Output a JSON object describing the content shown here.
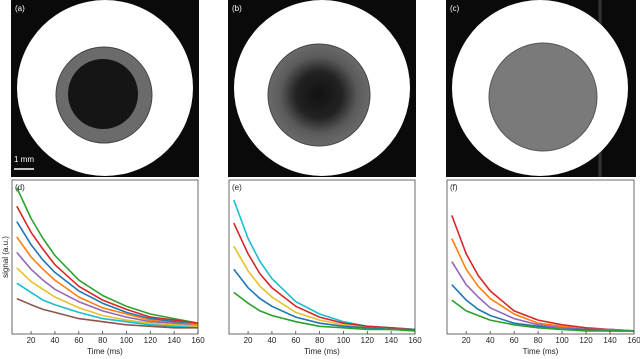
{
  "images": [
    {
      "label": "(a)"
    },
    {
      "label": "(b)"
    },
    {
      "label": "(c)"
    }
  ],
  "scale_bar_label": "1 mm",
  "chart_data": [
    {
      "type": "line",
      "label": "(d)",
      "xlabel": "Time (ms)",
      "ylabel": "signal (a.u.)",
      "x": [
        8,
        20,
        30,
        40,
        60,
        80,
        100,
        120,
        140,
        160
      ],
      "xlim": [
        4,
        160
      ],
      "xticks": [
        20,
        40,
        60,
        80,
        100,
        120,
        140,
        160
      ],
      "ylim": [
        0,
        1
      ],
      "series": [
        {
          "color": "#2ca02c",
          "values": [
            0.95,
            0.75,
            0.62,
            0.51,
            0.35,
            0.25,
            0.18,
            0.13,
            0.1,
            0.07
          ]
        },
        {
          "color": "#d62728",
          "values": [
            0.83,
            0.66,
            0.55,
            0.45,
            0.31,
            0.22,
            0.16,
            0.11,
            0.09,
            0.07
          ]
        },
        {
          "color": "#1f77b4",
          "values": [
            0.73,
            0.58,
            0.48,
            0.4,
            0.28,
            0.2,
            0.14,
            0.1,
            0.08,
            0.06
          ]
        },
        {
          "color": "#ff7f0e",
          "values": [
            0.63,
            0.5,
            0.42,
            0.35,
            0.24,
            0.17,
            0.13,
            0.09,
            0.07,
            0.06
          ]
        },
        {
          "color": "#9467bd",
          "values": [
            0.53,
            0.42,
            0.35,
            0.29,
            0.21,
            0.15,
            0.11,
            0.08,
            0.07,
            0.05
          ]
        },
        {
          "color": "#e6c229",
          "values": [
            0.43,
            0.34,
            0.29,
            0.24,
            0.17,
            0.12,
            0.09,
            0.07,
            0.06,
            0.05
          ]
        },
        {
          "color": "#17becf",
          "values": [
            0.33,
            0.27,
            0.22,
            0.19,
            0.14,
            0.1,
            0.08,
            0.06,
            0.05,
            0.04
          ]
        },
        {
          "color": "#8c564b",
          "values": [
            0.23,
            0.19,
            0.16,
            0.14,
            0.1,
            0.08,
            0.06,
            0.05,
            0.04,
            0.04
          ]
        }
      ]
    },
    {
      "type": "line",
      "label": "(e)",
      "xlabel": "Time (ms)",
      "x": [
        8,
        20,
        30,
        40,
        60,
        80,
        100,
        120,
        140,
        160
      ],
      "xlim": [
        4,
        160
      ],
      "xticks": [
        20,
        40,
        60,
        80,
        100,
        120,
        140,
        160
      ],
      "ylim": [
        0,
        1
      ],
      "series": [
        {
          "color": "#17becf",
          "values": [
            0.87,
            0.62,
            0.47,
            0.36,
            0.21,
            0.13,
            0.08,
            0.05,
            0.04,
            0.03
          ]
        },
        {
          "color": "#d62728",
          "values": [
            0.72,
            0.52,
            0.39,
            0.3,
            0.18,
            0.11,
            0.07,
            0.05,
            0.04,
            0.03
          ]
        },
        {
          "color": "#e6c229",
          "values": [
            0.57,
            0.41,
            0.31,
            0.24,
            0.14,
            0.09,
            0.06,
            0.04,
            0.03,
            0.03
          ]
        },
        {
          "color": "#1f77b4",
          "values": [
            0.42,
            0.3,
            0.23,
            0.18,
            0.11,
            0.07,
            0.05,
            0.04,
            0.03,
            0.03
          ]
        },
        {
          "color": "#2ca02c",
          "values": [
            0.27,
            0.2,
            0.15,
            0.12,
            0.08,
            0.05,
            0.04,
            0.03,
            0.03,
            0.02
          ]
        }
      ]
    },
    {
      "type": "line",
      "label": "(f)",
      "xlabel": "Time (ms)",
      "x": [
        8,
        20,
        30,
        40,
        60,
        80,
        100,
        120,
        140,
        160
      ],
      "xlim": [
        4,
        160
      ],
      "xticks": [
        20,
        40,
        60,
        80,
        100,
        120,
        140,
        160
      ],
      "ylim": [
        0,
        1
      ],
      "series": [
        {
          "color": "#d62728",
          "values": [
            0.77,
            0.52,
            0.38,
            0.28,
            0.15,
            0.09,
            0.06,
            0.04,
            0.03,
            0.02
          ]
        },
        {
          "color": "#ff7f0e",
          "values": [
            0.62,
            0.42,
            0.31,
            0.23,
            0.13,
            0.07,
            0.05,
            0.03,
            0.03,
            0.02
          ]
        },
        {
          "color": "#9467bd",
          "values": [
            0.47,
            0.32,
            0.24,
            0.17,
            0.1,
            0.06,
            0.04,
            0.03,
            0.03,
            0.02
          ]
        },
        {
          "color": "#1f77b4",
          "values": [
            0.32,
            0.22,
            0.16,
            0.12,
            0.07,
            0.05,
            0.03,
            0.03,
            0.02,
            0.02
          ]
        },
        {
          "color": "#2ca02c",
          "values": [
            0.22,
            0.15,
            0.12,
            0.09,
            0.06,
            0.04,
            0.03,
            0.02,
            0.02,
            0.02
          ]
        }
      ]
    }
  ]
}
